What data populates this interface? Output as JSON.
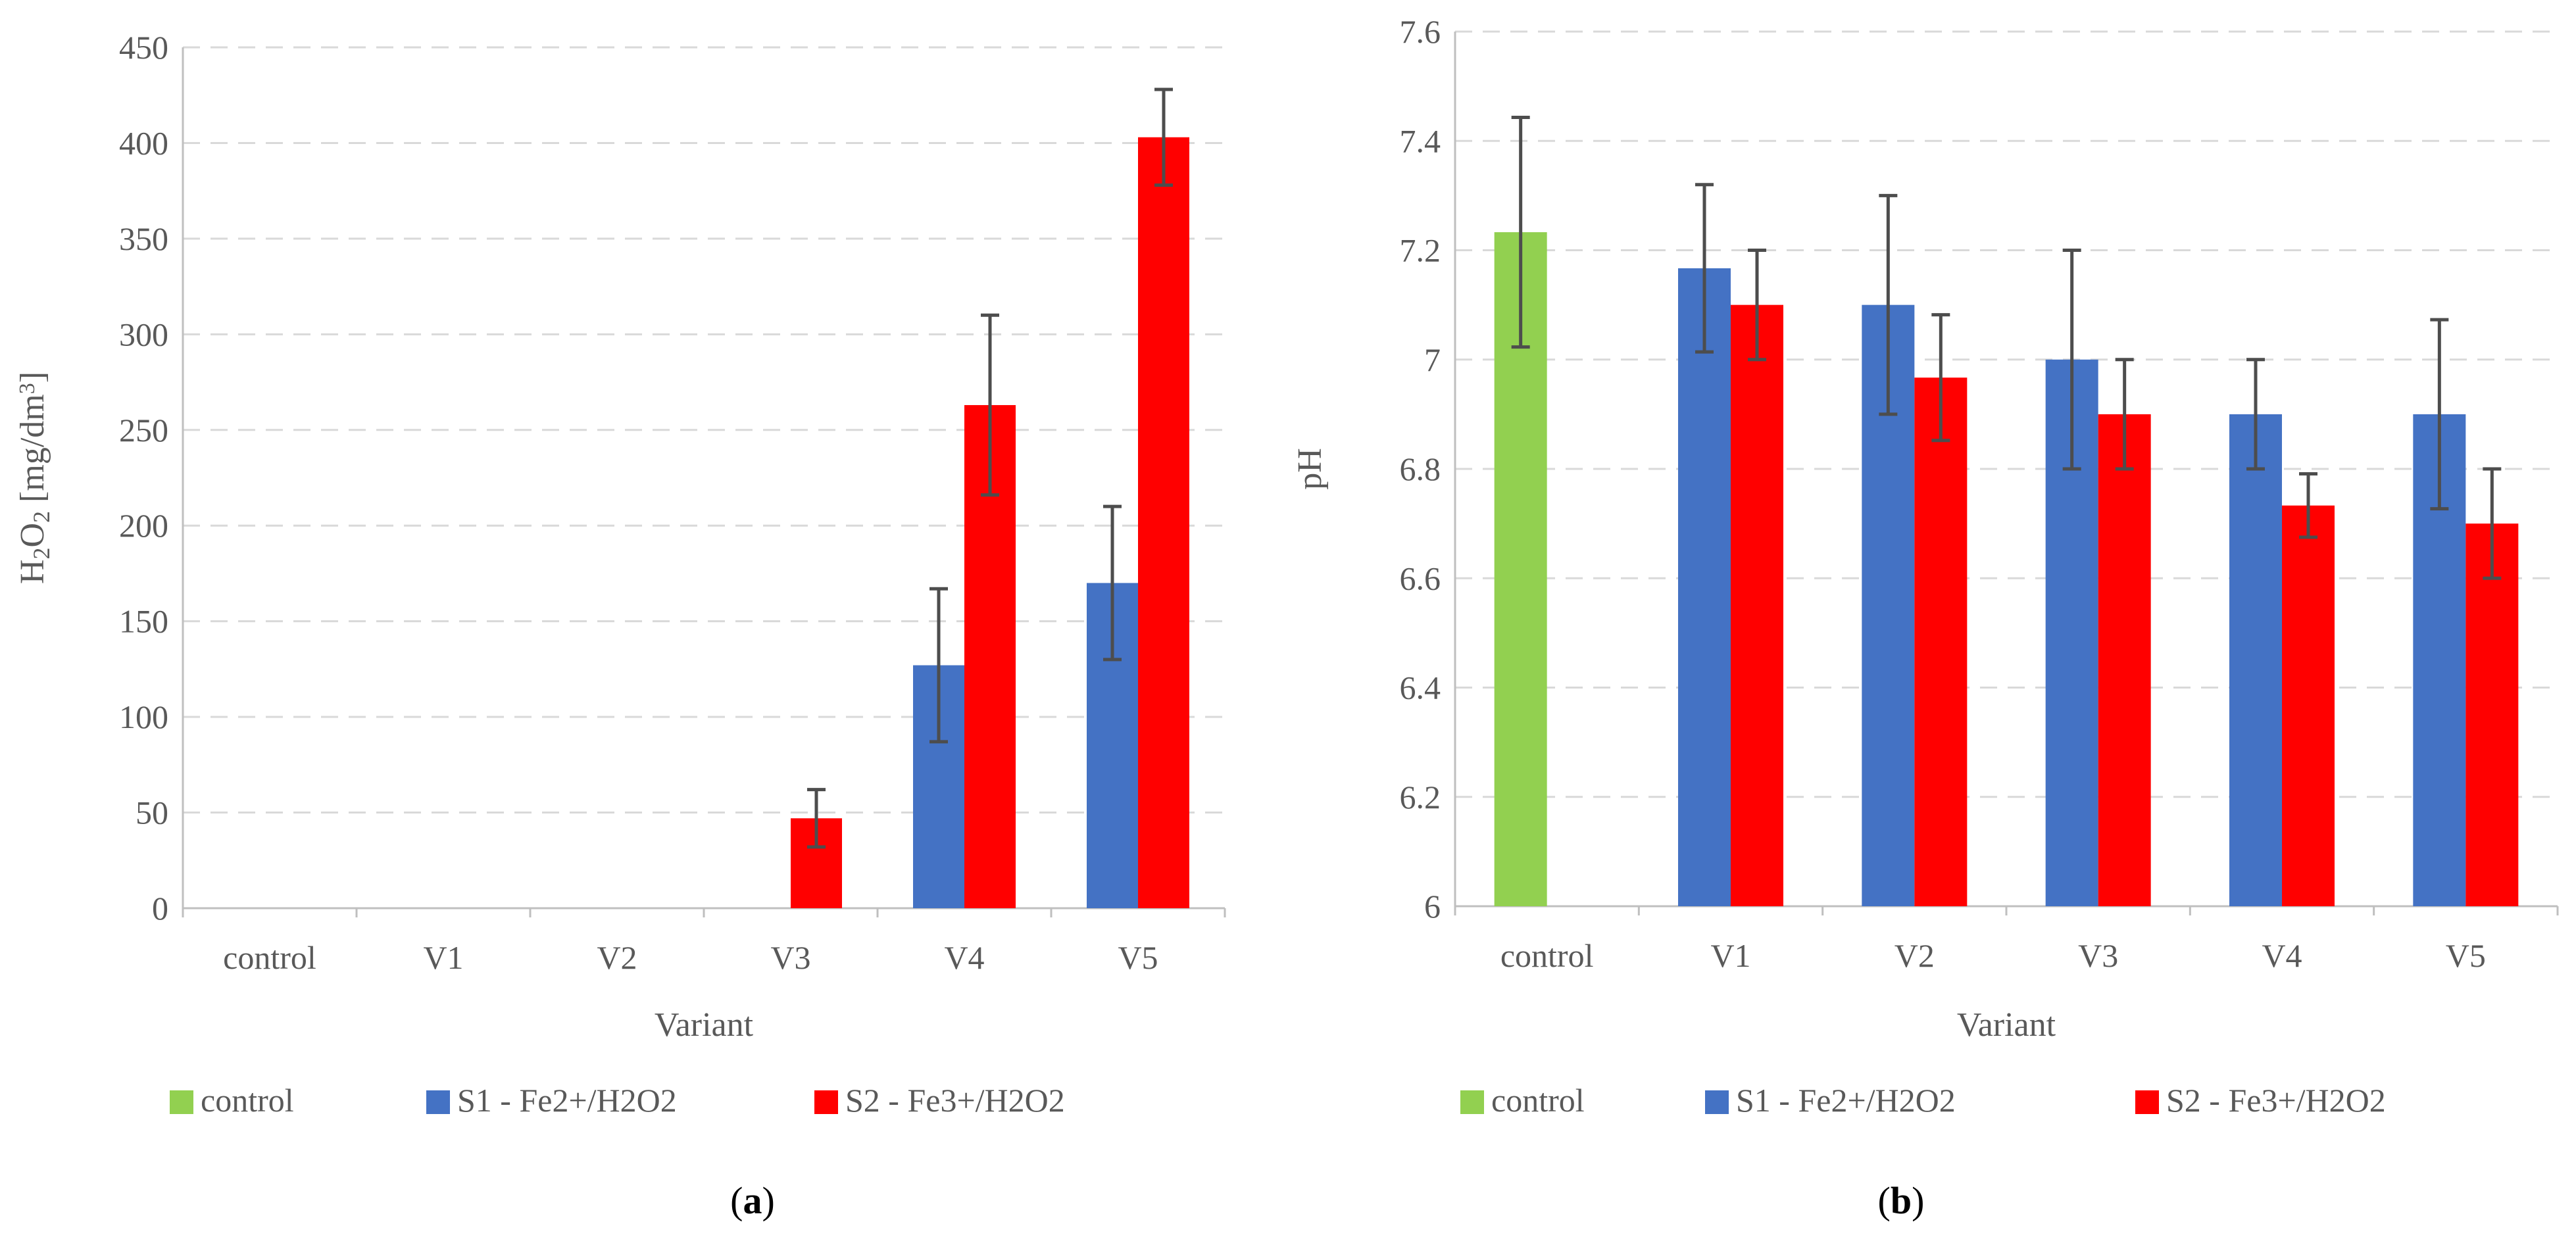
{
  "chart_data": [
    {
      "type": "bar",
      "panel": "a",
      "panel_label": "a",
      "categories": [
        "control",
        "V1",
        "V2",
        "V3",
        "V4",
        "V5"
      ],
      "xlabel": "Variant",
      "ylabel": "H2O2 [mg/dm3]",
      "ylim": [
        0,
        450
      ],
      "yticks": [
        "0",
        "50",
        "100",
        "150",
        "200",
        "250",
        "300",
        "350",
        "400",
        "450"
      ],
      "grid": true,
      "legend_position": "bottom",
      "series": [
        {
          "name": "control",
          "color": "#92d050",
          "values": [
            0,
            null,
            null,
            null,
            null,
            null
          ],
          "errors": [
            null,
            null,
            null,
            null,
            null,
            null
          ]
        },
        {
          "name": "S1 - Fe2+/H2O2",
          "color": "#4472c4",
          "values": [
            null,
            0,
            0,
            0,
            127,
            170
          ],
          "errors": [
            null,
            null,
            null,
            null,
            40,
            40
          ]
        },
        {
          "name": "S2 - Fe3+/H2O2",
          "color": "#ff0000",
          "values": [
            null,
            0,
            0,
            47,
            263,
            403
          ],
          "errors": [
            null,
            null,
            null,
            15,
            47,
            25
          ]
        }
      ]
    },
    {
      "type": "bar",
      "panel": "b",
      "panel_label": "b",
      "categories": [
        "control",
        "V1",
        "V2",
        "V3",
        "V4",
        "V5"
      ],
      "xlabel": "Variant",
      "ylabel": "pH",
      "ylim": [
        6,
        7.6
      ],
      "yticks": [
        "6",
        "6.2",
        "6.4",
        "6.6",
        "6.8",
        "7",
        "7.2",
        "7.4",
        "7.6"
      ],
      "grid": true,
      "legend_position": "bottom",
      "series": [
        {
          "name": "control",
          "color": "#92d050",
          "values": [
            7.233,
            null,
            null,
            null,
            null,
            null
          ],
          "errors": [
            0.21,
            null,
            null,
            null,
            null,
            null
          ]
        },
        {
          "name": "S1 - Fe2+/H2O2",
          "color": "#4472c4",
          "values": [
            null,
            7.167,
            7.1,
            7.0,
            6.9,
            6.9
          ],
          "errors": [
            null,
            0.153,
            0.2,
            0.2,
            0.1,
            0.173
          ]
        },
        {
          "name": "S2 - Fe3+/H2O2",
          "color": "#ff0000",
          "values": [
            null,
            7.1,
            6.967,
            6.9,
            6.733,
            6.7
          ],
          "errors": [
            null,
            0.1,
            0.115,
            0.1,
            0.058,
            0.1
          ]
        }
      ]
    }
  ]
}
